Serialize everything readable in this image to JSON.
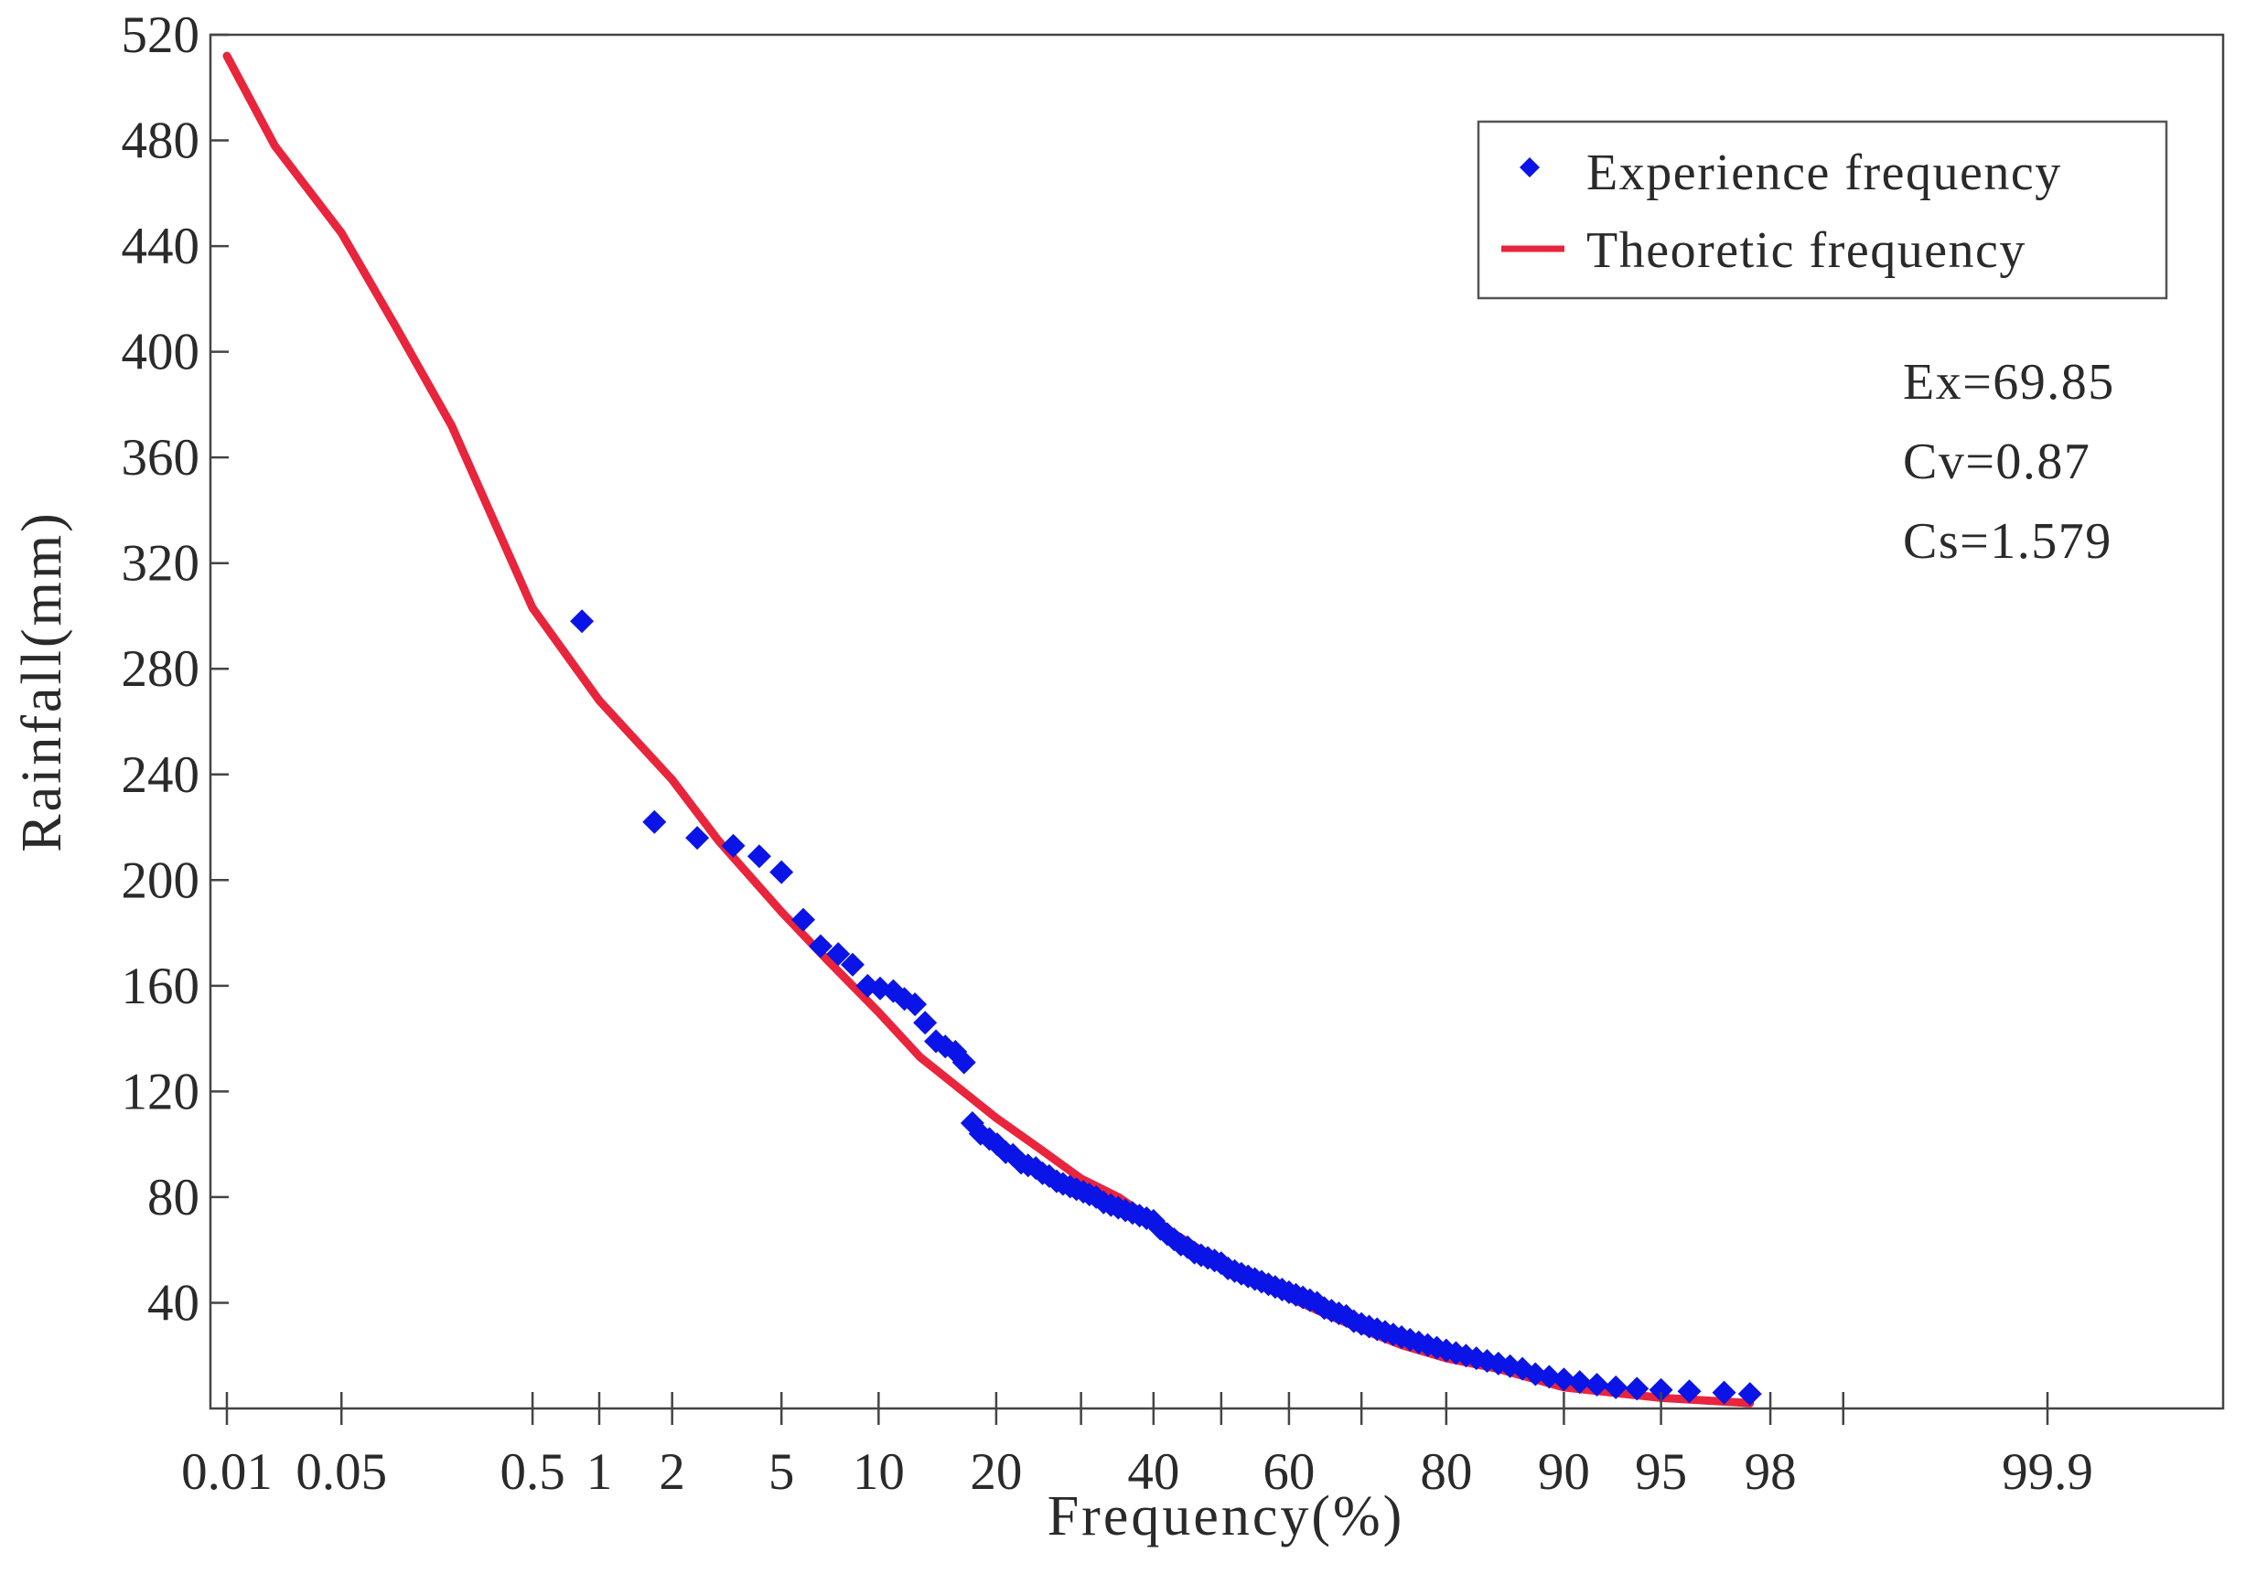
{
  "chart_data": {
    "type": "scatter",
    "xlabel": "Frequency(%)",
    "ylabel": "Rainfall(mm)",
    "x_scale": "probability",
    "x_tick_labels": [
      "0.01",
      "0.05",
      "0.5",
      "1",
      "2",
      "5",
      "10",
      "20",
      "40",
      "60",
      "80",
      "90",
      "95",
      "98",
      "99.9"
    ],
    "x_tick_values": [
      0.01,
      0.05,
      0.5,
      1,
      2,
      5,
      10,
      20,
      40,
      60,
      80,
      90,
      95,
      98,
      99.9
    ],
    "x_minor_ticks": [
      30,
      50,
      70,
      99
    ],
    "ylim": [
      0,
      520
    ],
    "y_ticks": [
      40,
      80,
      120,
      160,
      200,
      240,
      280,
      320,
      360,
      400,
      440,
      480,
      520
    ],
    "legend": {
      "position": "top-right",
      "entries": [
        {
          "name": "Experience frequency",
          "marker": "diamond",
          "color": "#0a14e6"
        },
        {
          "name": "Theoretic frequency",
          "marker": "line",
          "color": "#e8253c"
        }
      ]
    },
    "annotations": [
      "Ex=69.85",
      "Cv=0.87",
      "Cs=1.579"
    ],
    "series": [
      {
        "name": "Experience frequency",
        "type": "scatter",
        "color": "#0a14e6",
        "points": [
          [
            0.84,
            298
          ],
          [
            1.7,
            222
          ],
          [
            2.5,
            216
          ],
          [
            3.4,
            213
          ],
          [
            4.2,
            209
          ],
          [
            5.0,
            203
          ],
          [
            5.9,
            185
          ],
          [
            6.7,
            175
          ],
          [
            7.6,
            172
          ],
          [
            8.4,
            168
          ],
          [
            9.3,
            160
          ],
          [
            10.1,
            159
          ],
          [
            11.0,
            158
          ],
          [
            11.8,
            155
          ],
          [
            12.6,
            153
          ],
          [
            13.4,
            146
          ],
          [
            14.3,
            139
          ],
          [
            15.1,
            137
          ],
          [
            16.0,
            135
          ],
          [
            16.8,
            131
          ],
          [
            17.6,
            108
          ],
          [
            18.4,
            104
          ],
          [
            19.3,
            102
          ],
          [
            20.1,
            100
          ],
          [
            21.0,
            97
          ],
          [
            21.8,
            96
          ],
          [
            22.7,
            93
          ],
          [
            23.5,
            92
          ],
          [
            24.4,
            91
          ],
          [
            25.2,
            89
          ],
          [
            26.0,
            88
          ],
          [
            26.9,
            86
          ],
          [
            27.7,
            85
          ],
          [
            28.6,
            84
          ],
          [
            29.4,
            83
          ],
          [
            30.3,
            82
          ],
          [
            31.1,
            81
          ],
          [
            32.0,
            80
          ],
          [
            33.0,
            78
          ],
          [
            34.0,
            77
          ],
          [
            35.0,
            76
          ],
          [
            36.0,
            75
          ],
          [
            37.0,
            74
          ],
          [
            38.0,
            73
          ],
          [
            39.0,
            72
          ],
          [
            40.0,
            71
          ],
          [
            41.0,
            68
          ],
          [
            42.0,
            66
          ],
          [
            43.0,
            64
          ],
          [
            44.0,
            62
          ],
          [
            45.0,
            61
          ],
          [
            46.0,
            59
          ],
          [
            47.0,
            58
          ],
          [
            48.0,
            57
          ],
          [
            49.0,
            56
          ],
          [
            50.0,
            55
          ],
          [
            51.0,
            53
          ],
          [
            52.0,
            52
          ],
          [
            53.0,
            51
          ],
          [
            54.0,
            50
          ],
          [
            55.0,
            49
          ],
          [
            56.0,
            48
          ],
          [
            57.0,
            47
          ],
          [
            58.0,
            46
          ],
          [
            59.0,
            45
          ],
          [
            60.0,
            44
          ],
          [
            61.0,
            43
          ],
          [
            62.0,
            42
          ],
          [
            63.0,
            41
          ],
          [
            64.0,
            40
          ],
          [
            65.0,
            38
          ],
          [
            66.0,
            37
          ],
          [
            67.0,
            36
          ],
          [
            68.0,
            35
          ],
          [
            69.0,
            33
          ],
          [
            70.0,
            32
          ],
          [
            71.0,
            31
          ],
          [
            72.0,
            30
          ],
          [
            73.0,
            29
          ],
          [
            74.0,
            28
          ],
          [
            75.0,
            27
          ],
          [
            76.0,
            26
          ],
          [
            77.0,
            25
          ],
          [
            78.0,
            24
          ],
          [
            79.0,
            23
          ],
          [
            80.0,
            22
          ],
          [
            81.0,
            21
          ],
          [
            82.0,
            20
          ],
          [
            83.0,
            19
          ],
          [
            84.0,
            18
          ],
          [
            85.0,
            17
          ],
          [
            86.0,
            16
          ],
          [
            87.0,
            15
          ],
          [
            88.0,
            13
          ],
          [
            89.0,
            12
          ],
          [
            90.0,
            11
          ],
          [
            91.0,
            10
          ],
          [
            92.0,
            9
          ],
          [
            93.0,
            8
          ],
          [
            94.0,
            7.5
          ],
          [
            95.0,
            7
          ],
          [
            96.0,
            6.5
          ],
          [
            97.0,
            6
          ],
          [
            97.6,
            5.5
          ]
        ]
      },
      {
        "name": "Theoretic frequency",
        "type": "line",
        "color": "#e8253c",
        "points": [
          [
            0.01,
            512
          ],
          [
            0.02,
            478
          ],
          [
            0.05,
            445
          ],
          [
            0.1,
            410
          ],
          [
            0.2,
            372
          ],
          [
            0.5,
            303
          ],
          [
            1,
            268
          ],
          [
            2,
            238
          ],
          [
            3,
            215
          ],
          [
            5,
            188
          ],
          [
            7,
            170
          ],
          [
            10,
            150
          ],
          [
            13,
            133
          ],
          [
            20,
            110
          ],
          [
            25,
            98
          ],
          [
            30,
            87
          ],
          [
            35,
            80
          ],
          [
            40,
            71
          ],
          [
            45,
            63
          ],
          [
            50,
            55
          ],
          [
            55,
            49
          ],
          [
            60,
            42
          ],
          [
            65,
            36
          ],
          [
            70,
            30
          ],
          [
            75,
            24
          ],
          [
            80,
            19
          ],
          [
            85,
            15
          ],
          [
            90,
            8
          ],
          [
            95,
            4
          ],
          [
            97.6,
            2
          ]
        ]
      }
    ]
  }
}
